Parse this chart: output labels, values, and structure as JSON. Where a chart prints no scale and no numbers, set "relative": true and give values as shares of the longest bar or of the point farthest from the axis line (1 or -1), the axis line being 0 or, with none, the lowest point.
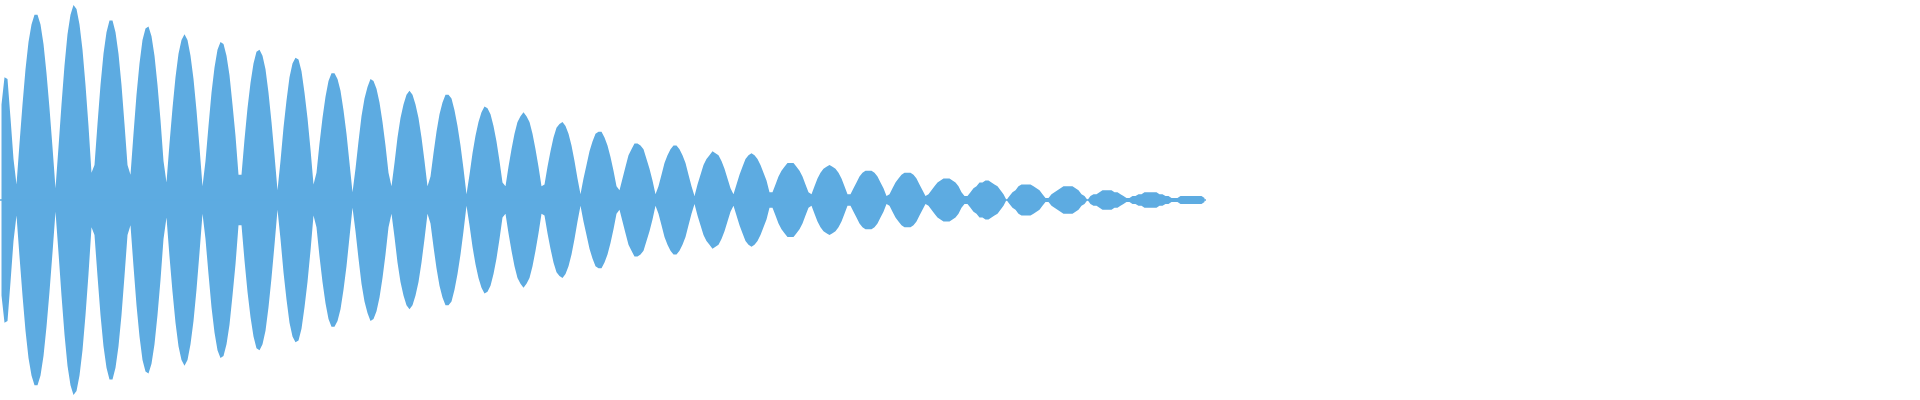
{
  "chart_data": {
    "type": "area",
    "relative": true,
    "tick_labels": false,
    "ref_lines": [
      {
        "axis": "y",
        "value": 0,
        "color": "#5dabe1"
      }
    ],
    "categories": [
      null,
      null,
      null,
      null,
      null,
      null,
      null,
      null,
      null,
      null,
      null,
      null,
      null,
      null,
      null,
      null,
      null,
      null,
      null,
      null,
      null,
      null,
      null,
      null,
      null,
      null,
      null,
      null,
      null,
      null,
      null,
      null,
      null,
      null,
      null,
      null,
      null,
      null,
      null,
      null,
      null,
      null,
      null,
      null,
      null,
      null,
      null,
      null,
      null,
      null,
      null,
      null,
      null,
      null,
      null,
      null,
      null,
      null,
      null,
      null,
      null,
      null,
      null,
      null,
      null,
      null,
      null,
      null,
      null,
      null,
      null,
      null,
      null,
      null,
      null,
      null,
      null,
      null,
      null,
      null,
      null,
      null,
      null,
      null,
      null,
      null,
      null,
      null,
      null,
      null,
      null,
      null,
      null,
      null,
      null,
      null,
      null,
      null,
      null,
      null,
      null,
      null,
      null,
      null,
      null,
      null,
      null,
      null,
      null,
      null,
      null,
      null,
      null,
      null,
      null,
      null,
      null,
      null,
      null,
      null,
      null,
      null,
      null,
      null,
      null,
      null,
      null,
      null,
      null,
      null,
      null,
      null,
      null,
      null,
      null,
      null,
      null,
      null,
      null,
      null,
      null,
      null,
      null,
      null,
      null,
      null,
      null,
      null,
      null,
      null,
      null,
      null,
      null,
      null,
      null,
      null,
      null,
      null,
      null,
      null,
      null,
      null,
      null,
      null,
      null,
      null,
      null,
      null,
      null,
      null,
      null,
      null,
      null,
      null,
      null,
      null,
      null,
      null,
      null,
      null,
      null,
      null,
      null,
      null,
      null,
      null,
      null,
      null,
      null,
      null,
      null,
      null,
      null,
      null,
      null,
      null,
      null,
      null,
      null,
      null,
      null,
      null,
      null,
      null,
      null,
      null,
      null,
      null,
      null,
      null,
      null,
      null,
      null,
      null,
      null,
      null,
      null,
      null,
      null,
      null,
      null,
      null,
      null,
      null,
      null,
      null,
      null,
      null,
      null,
      null,
      null,
      null,
      null,
      null,
      null,
      null,
      null,
      null,
      null,
      null,
      null,
      null,
      null,
      null,
      null,
      null,
      null,
      null,
      null,
      null,
      null,
      null,
      null,
      null,
      null,
      null,
      null,
      null,
      null,
      null,
      null,
      null,
      null,
      null,
      null,
      null,
      null,
      null,
      null,
      null,
      null,
      null,
      null,
      null,
      null,
      null,
      null,
      null,
      null,
      null,
      null,
      null,
      null,
      null,
      null,
      null,
      null,
      null,
      null,
      null,
      null,
      null,
      null,
      null,
      null,
      null,
      null,
      null,
      null,
      null,
      null,
      null,
      null,
      null,
      null,
      null,
      null,
      null,
      null,
      null,
      null,
      null,
      null,
      null,
      null,
      null,
      null,
      null,
      null,
      null,
      null,
      null,
      null,
      null,
      null,
      null,
      null,
      null,
      null,
      null,
      null,
      null,
      null,
      null,
      null,
      null,
      null,
      null,
      null,
      null,
      null,
      null,
      null,
      null,
      null,
      null,
      null,
      null,
      null,
      null,
      null,
      null,
      null,
      null,
      null,
      null,
      null,
      null,
      null,
      null,
      null,
      null,
      null,
      null,
      null,
      null,
      null,
      null,
      null,
      null,
      null,
      null,
      null,
      null,
      null,
      null,
      null,
      null,
      null,
      null,
      null,
      null,
      null,
      null,
      null,
      null,
      null,
      null,
      null,
      null,
      null,
      null,
      null,
      null,
      null,
      null,
      null,
      null,
      null,
      null,
      null,
      null
    ],
    "series": [
      {
        "color": "#5dabe1",
        "values": [
          0.49,
          0.63,
          0.62,
          0.42,
          0.21,
          0.08,
          0.29,
          0.49,
          0.67,
          0.81,
          0.9,
          0.95,
          0.95,
          0.9,
          0.8,
          0.65,
          0.47,
          0.27,
          0.06,
          0.27,
          0.49,
          0.69,
          0.85,
          0.95,
          1.0,
          0.98,
          0.9,
          0.77,
          0.59,
          0.38,
          0.14,
          0.18,
          0.39,
          0.59,
          0.75,
          0.86,
          0.92,
          0.92,
          0.86,
          0.75,
          0.59,
          0.39,
          0.18,
          0.13,
          0.34,
          0.54,
          0.7,
          0.82,
          0.88,
          0.89,
          0.84,
          0.74,
          0.59,
          0.41,
          0.2,
          0.09,
          0.29,
          0.47,
          0.63,
          0.75,
          0.82,
          0.85,
          0.82,
          0.74,
          0.62,
          0.46,
          0.27,
          0.07,
          0.2,
          0.38,
          0.55,
          0.68,
          0.77,
          0.81,
          0.8,
          0.74,
          0.64,
          0.49,
          0.33,
          0.13,
          0.13,
          0.31,
          0.47,
          0.6,
          0.7,
          0.76,
          0.77,
          0.74,
          0.67,
          0.55,
          0.4,
          0.23,
          0.05,
          0.2,
          0.37,
          0.51,
          0.63,
          0.7,
          0.73,
          0.72,
          0.66,
          0.55,
          0.42,
          0.26,
          0.08,
          0.14,
          0.29,
          0.42,
          0.53,
          0.61,
          0.65,
          0.65,
          0.62,
          0.56,
          0.46,
          0.34,
          0.19,
          0.04,
          0.16,
          0.3,
          0.43,
          0.52,
          0.58,
          0.62,
          0.61,
          0.57,
          0.5,
          0.4,
          0.28,
          0.14,
          0.07,
          0.19,
          0.32,
          0.42,
          0.49,
          0.54,
          0.56,
          0.54,
          0.49,
          0.42,
          0.32,
          0.2,
          0.07,
          0.12,
          0.24,
          0.35,
          0.44,
          0.5,
          0.54,
          0.54,
          0.52,
          0.46,
          0.38,
          0.28,
          0.16,
          0.03,
          0.13,
          0.24,
          0.33,
          0.4,
          0.45,
          0.48,
          0.47,
          0.44,
          0.38,
          0.3,
          0.2,
          0.09,
          0.07,
          0.17,
          0.26,
          0.34,
          0.4,
          0.43,
          0.45,
          0.43,
          0.4,
          0.34,
          0.26,
          0.17,
          0.07,
          0.08,
          0.17,
          0.25,
          0.32,
          0.37,
          0.39,
          0.4,
          0.38,
          0.34,
          0.28,
          0.2,
          0.11,
          0.03,
          0.11,
          0.18,
          0.25,
          0.3,
          0.34,
          0.35,
          0.35,
          0.32,
          0.28,
          0.22,
          0.15,
          0.07,
          0.05,
          0.11,
          0.17,
          0.23,
          0.26,
          0.29,
          0.29,
          0.28,
          0.26,
          0.21,
          0.16,
          0.1,
          0.03,
          0.07,
          0.13,
          0.19,
          0.23,
          0.26,
          0.28,
          0.28,
          0.26,
          0.23,
          0.19,
          0.13,
          0.07,
          0.02,
          0.08,
          0.13,
          0.18,
          0.21,
          0.23,
          0.25,
          0.24,
          0.23,
          0.2,
          0.16,
          0.11,
          0.06,
          0.03,
          0.08,
          0.13,
          0.17,
          0.21,
          0.23,
          0.24,
          0.23,
          0.21,
          0.18,
          0.14,
          0.1,
          0.04,
          0.04,
          0.08,
          0.12,
          0.15,
          0.17,
          0.19,
          0.19,
          0.19,
          0.17,
          0.15,
          0.12,
          0.08,
          0.04,
          0.03,
          0.07,
          0.11,
          0.14,
          0.16,
          0.17,
          0.18,
          0.17,
          0.16,
          0.14,
          0.11,
          0.07,
          0.03,
          0.03,
          0.06,
          0.09,
          0.12,
          0.14,
          0.15,
          0.15,
          0.15,
          0.14,
          0.12,
          0.09,
          0.06,
          0.02,
          0.03,
          0.06,
          0.09,
          0.11,
          0.13,
          0.14,
          0.14,
          0.14,
          0.13,
          0.11,
          0.08,
          0.05,
          0.02,
          0.03,
          0.05,
          0.07,
          0.09,
          0.1,
          0.11,
          0.11,
          0.11,
          0.1,
          0.09,
          0.07,
          0.04,
          0.02,
          0.02,
          0.04,
          0.06,
          0.07,
          0.09,
          0.09,
          0.1,
          0.1,
          0.09,
          0.08,
          0.07,
          0.05,
          0.03,
          0.0,
          0.02,
          0.04,
          0.05,
          0.07,
          0.08,
          0.08,
          0.08,
          0.08,
          0.07,
          0.06,
          0.05,
          0.03,
          0.01,
          0.01,
          0.03,
          0.04,
          0.05,
          0.06,
          0.07,
          0.07,
          0.07,
          0.07,
          0.06,
          0.05,
          0.03,
          0.02,
          0.0,
          0.02,
          0.03,
          0.03,
          0.04,
          0.05,
          0.05,
          0.05,
          0.05,
          0.04,
          0.04,
          0.03,
          0.02,
          0.01,
          0.01,
          0.02,
          0.02,
          0.03,
          0.03,
          0.04,
          0.04,
          0.04,
          0.04,
          0.04,
          0.03,
          0.03,
          0.02,
          0.02,
          0.01,
          0.01,
          0.01,
          0.02,
          0.02,
          0.02,
          0.02,
          0.02,
          0.02,
          0.02,
          0.02,
          0.01
        ]
      },
      {
        "color": "#5dabe1",
        "values": [
          -0.49,
          -0.63,
          -0.62,
          -0.42,
          -0.21,
          -0.08,
          -0.29,
          -0.49,
          -0.67,
          -0.81,
          -0.9,
          -0.95,
          -0.95,
          -0.9,
          -0.8,
          -0.65,
          -0.47,
          -0.27,
          -0.06,
          -0.27,
          -0.49,
          -0.69,
          -0.85,
          -0.95,
          -1.0,
          -0.98,
          -0.9,
          -0.77,
          -0.59,
          -0.38,
          -0.14,
          -0.18,
          -0.39,
          -0.59,
          -0.75,
          -0.86,
          -0.92,
          -0.92,
          -0.86,
          -0.75,
          -0.59,
          -0.39,
          -0.18,
          -0.13,
          -0.34,
          -0.54,
          -0.7,
          -0.82,
          -0.88,
          -0.89,
          -0.84,
          -0.74,
          -0.59,
          -0.41,
          -0.2,
          -0.09,
          -0.29,
          -0.47,
          -0.63,
          -0.75,
          -0.82,
          -0.85,
          -0.82,
          -0.74,
          -0.62,
          -0.46,
          -0.27,
          -0.07,
          -0.2,
          -0.38,
          -0.55,
          -0.68,
          -0.77,
          -0.81,
          -0.8,
          -0.74,
          -0.64,
          -0.49,
          -0.33,
          -0.13,
          -0.13,
          -0.31,
          -0.47,
          -0.6,
          -0.7,
          -0.76,
          -0.77,
          -0.74,
          -0.67,
          -0.55,
          -0.4,
          -0.23,
          -0.05,
          -0.2,
          -0.37,
          -0.51,
          -0.63,
          -0.7,
          -0.73,
          -0.72,
          -0.66,
          -0.55,
          -0.42,
          -0.26,
          -0.08,
          -0.14,
          -0.29,
          -0.42,
          -0.53,
          -0.61,
          -0.65,
          -0.65,
          -0.62,
          -0.56,
          -0.46,
          -0.34,
          -0.19,
          -0.04,
          -0.16,
          -0.3,
          -0.43,
          -0.52,
          -0.58,
          -0.62,
          -0.61,
          -0.57,
          -0.5,
          -0.4,
          -0.28,
          -0.14,
          -0.07,
          -0.19,
          -0.32,
          -0.42,
          -0.49,
          -0.54,
          -0.56,
          -0.54,
          -0.49,
          -0.42,
          -0.32,
          -0.2,
          -0.07,
          -0.12,
          -0.24,
          -0.35,
          -0.44,
          -0.5,
          -0.54,
          -0.54,
          -0.52,
          -0.46,
          -0.38,
          -0.28,
          -0.16,
          -0.03,
          -0.13,
          -0.24,
          -0.33,
          -0.4,
          -0.45,
          -0.48,
          -0.47,
          -0.44,
          -0.38,
          -0.3,
          -0.2,
          -0.09,
          -0.07,
          -0.17,
          -0.26,
          -0.34,
          -0.4,
          -0.43,
          -0.45,
          -0.43,
          -0.4,
          -0.34,
          -0.26,
          -0.17,
          -0.07,
          -0.08,
          -0.17,
          -0.25,
          -0.32,
          -0.37,
          -0.39,
          -0.4,
          -0.38,
          -0.34,
          -0.28,
          -0.2,
          -0.11,
          -0.03,
          -0.11,
          -0.18,
          -0.25,
          -0.3,
          -0.34,
          -0.35,
          -0.35,
          -0.32,
          -0.28,
          -0.22,
          -0.15,
          -0.07,
          -0.05,
          -0.11,
          -0.17,
          -0.23,
          -0.26,
          -0.29,
          -0.29,
          -0.28,
          -0.26,
          -0.21,
          -0.16,
          -0.1,
          -0.03,
          -0.07,
          -0.13,
          -0.19,
          -0.23,
          -0.26,
          -0.28,
          -0.28,
          -0.26,
          -0.23,
          -0.19,
          -0.13,
          -0.07,
          -0.02,
          -0.08,
          -0.13,
          -0.18,
          -0.21,
          -0.23,
          -0.25,
          -0.24,
          -0.23,
          -0.2,
          -0.16,
          -0.11,
          -0.06,
          -0.03,
          -0.08,
          -0.13,
          -0.17,
          -0.21,
          -0.23,
          -0.24,
          -0.23,
          -0.21,
          -0.18,
          -0.14,
          -0.1,
          -0.04,
          -0.04,
          -0.08,
          -0.12,
          -0.15,
          -0.17,
          -0.19,
          -0.19,
          -0.19,
          -0.17,
          -0.15,
          -0.12,
          -0.08,
          -0.04,
          -0.03,
          -0.07,
          -0.11,
          -0.14,
          -0.16,
          -0.17,
          -0.18,
          -0.17,
          -0.16,
          -0.14,
          -0.11,
          -0.07,
          -0.03,
          -0.03,
          -0.06,
          -0.09,
          -0.12,
          -0.14,
          -0.15,
          -0.15,
          -0.15,
          -0.14,
          -0.12,
          -0.09,
          -0.06,
          -0.02,
          -0.03,
          -0.06,
          -0.09,
          -0.11,
          -0.13,
          -0.14,
          -0.14,
          -0.14,
          -0.13,
          -0.11,
          -0.08,
          -0.05,
          -0.02,
          -0.03,
          -0.05,
          -0.07,
          -0.09,
          -0.1,
          -0.11,
          -0.11,
          -0.11,
          -0.1,
          -0.09,
          -0.07,
          -0.04,
          -0.02,
          -0.02,
          -0.04,
          -0.06,
          -0.07,
          -0.09,
          -0.09,
          -0.1,
          -0.1,
          -0.09,
          -0.08,
          -0.07,
          -0.05,
          -0.03,
          0.0,
          -0.02,
          -0.04,
          -0.05,
          -0.07,
          -0.08,
          -0.08,
          -0.08,
          -0.08,
          -0.07,
          -0.06,
          -0.05,
          -0.03,
          -0.01,
          -0.01,
          -0.03,
          -0.04,
          -0.05,
          -0.06,
          -0.07,
          -0.07,
          -0.07,
          -0.07,
          -0.06,
          -0.05,
          -0.03,
          -0.02,
          0.0,
          -0.02,
          -0.03,
          -0.03,
          -0.04,
          -0.05,
          -0.05,
          -0.05,
          -0.05,
          -0.04,
          -0.04,
          -0.03,
          -0.02,
          -0.01,
          -0.01,
          -0.02,
          -0.02,
          -0.03,
          -0.03,
          -0.04,
          -0.04,
          -0.04,
          -0.04,
          -0.04,
          -0.03,
          -0.03,
          -0.02,
          -0.02,
          -0.01,
          -0.01,
          -0.01,
          -0.02,
          -0.02,
          -0.02,
          -0.02,
          -0.02,
          -0.02,
          -0.02,
          -0.02,
          -0.01
        ]
      }
    ]
  }
}
